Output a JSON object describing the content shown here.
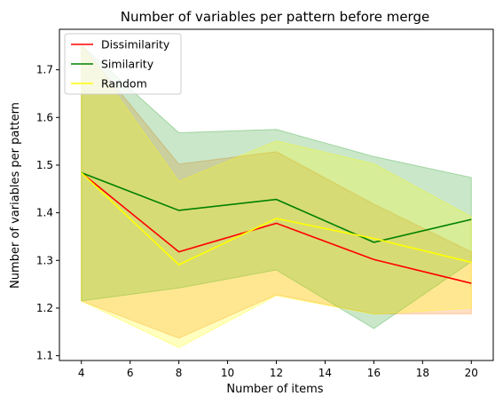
{
  "chart_data": {
    "type": "line",
    "title": "Number of variables per pattern before merge",
    "xlabel": "Number of items",
    "ylabel": "Number of variables per pattern",
    "xlim": [
      3.1,
      20.9
    ],
    "ylim": [
      1.09,
      1.785
    ],
    "xticks": [
      4,
      6,
      8,
      10,
      12,
      14,
      16,
      18,
      20
    ],
    "yticks": [
      1.1,
      1.2,
      1.3,
      1.4,
      1.5,
      1.6,
      1.7
    ],
    "legend_position": "top-left",
    "x": [
      4,
      8,
      12,
      16,
      20
    ],
    "series": [
      {
        "name": "Dissimilarity",
        "color": "#ff0000",
        "band_color": "#ff7f0e",
        "values": [
          1.484,
          1.318,
          1.378,
          1.302,
          1.252
        ],
        "lower": [
          1.215,
          1.137,
          1.228,
          1.188,
          1.188
        ],
        "upper": [
          1.752,
          1.502,
          1.528,
          1.418,
          1.318
        ]
      },
      {
        "name": "Similarity",
        "color": "#008000",
        "band_color": "#2ca02c",
        "values": [
          1.484,
          1.405,
          1.428,
          1.338,
          1.386
        ],
        "lower": [
          1.215,
          1.242,
          1.28,
          1.157,
          1.297
        ],
        "upper": [
          1.752,
          1.568,
          1.575,
          1.518,
          1.474
        ]
      },
      {
        "name": "Random",
        "color": "#ffff00",
        "band_color": "#ffff00",
        "values": [
          1.484,
          1.291,
          1.388,
          1.346,
          1.296
        ],
        "lower": [
          1.215,
          1.117,
          1.226,
          1.187,
          1.2
        ],
        "upper": [
          1.752,
          1.466,
          1.551,
          1.503,
          1.392
        ]
      }
    ]
  }
}
